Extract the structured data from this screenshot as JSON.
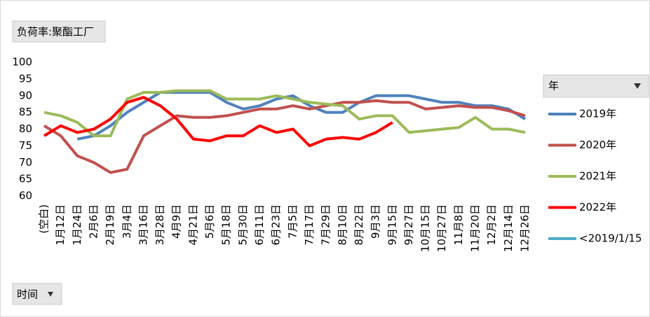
{
  "chart_data": {
    "type": "line",
    "title": "负荷率:聚酯工厂",
    "legend_title": "年",
    "x_field": "时间",
    "categories": [
      "(空白)",
      "1月12日",
      "1月24日",
      "2月6日",
      "2月19日",
      "3月4日",
      "3月16日",
      "3月28日",
      "4月9日",
      "4月21日",
      "5月6日",
      "5月18日",
      "5月30日",
      "6月11日",
      "6月23日",
      "7月5日",
      "7月17日",
      "7月29日",
      "8月10日",
      "8月22日",
      "9月3日",
      "9月15日",
      "9月27日",
      "10月15日",
      "10月27日",
      "11月8日",
      "11月20日",
      "12月2日",
      "12月14日",
      "12月26日"
    ],
    "series": [
      {
        "name": "2019年",
        "color": "#4f81bd",
        "values": [
          null,
          null,
          77,
          78,
          81,
          85,
          88,
          91,
          91,
          91,
          91,
          88,
          86,
          87,
          89,
          90,
          87,
          85,
          85,
          88,
          90,
          90,
          90,
          89,
          88,
          88,
          87,
          87,
          86,
          83
        ]
      },
      {
        "name": "2020年",
        "color": "#c0504d",
        "values": [
          81,
          78,
          72,
          70,
          67,
          68,
          78,
          81,
          84,
          83.5,
          83.5,
          84,
          85,
          86,
          86,
          87,
          86,
          87,
          88,
          88,
          88.5,
          88,
          88,
          86,
          86.5,
          87,
          86.5,
          86.5,
          85.5,
          84
        ]
      },
      {
        "name": "2021年",
        "color": "#9bbb59",
        "values": [
          85,
          84,
          82,
          78,
          78,
          89,
          91,
          91,
          91.5,
          91.5,
          91.5,
          89,
          89,
          89,
          90,
          89,
          88,
          87.5,
          87,
          83,
          84,
          84,
          79,
          79.5,
          80,
          80.5,
          83.5,
          80,
          80,
          79
        ]
      },
      {
        "name": "2022年",
        "color": "#ff0000",
        "values": [
          78,
          81,
          79,
          80,
          83,
          88,
          89.5,
          87,
          83,
          77,
          76.5,
          78,
          78,
          81,
          79,
          80,
          75,
          77,
          77.5,
          77,
          79,
          82,
          null,
          null,
          null,
          null,
          null,
          null,
          null,
          null
        ]
      },
      {
        "name": "<2019/1/15",
        "color": "#4bacc6",
        "values": [
          null,
          null,
          null,
          null,
          null,
          null,
          null,
          null,
          null,
          null,
          null,
          null,
          null,
          null,
          null,
          null,
          null,
          null,
          null,
          null,
          null,
          null,
          null,
          null,
          null,
          null,
          null,
          null,
          null,
          null
        ]
      }
    ],
    "ylim": [
      60,
      100
    ],
    "yticks": [
      60,
      65,
      70,
      75,
      80,
      85,
      90,
      95,
      100
    ],
    "grid": false
  }
}
